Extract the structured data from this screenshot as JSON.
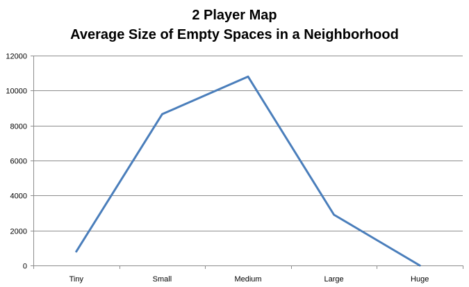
{
  "chart_data": {
    "type": "line",
    "title": "2 Player Map",
    "subtitle": "Average Size of Empty Spaces in a Neighborhood",
    "categories": [
      "Tiny",
      "Small",
      "Medium",
      "Large",
      "Huge"
    ],
    "series": [
      {
        "values": [
          800,
          8650,
          10800,
          2900,
          0
        ],
        "color": "#4A7EBB"
      }
    ],
    "ylim": [
      0,
      12000
    ],
    "yticks": [
      0,
      2000,
      4000,
      6000,
      8000,
      10000,
      12000
    ],
    "grid": true,
    "legend": "none"
  }
}
